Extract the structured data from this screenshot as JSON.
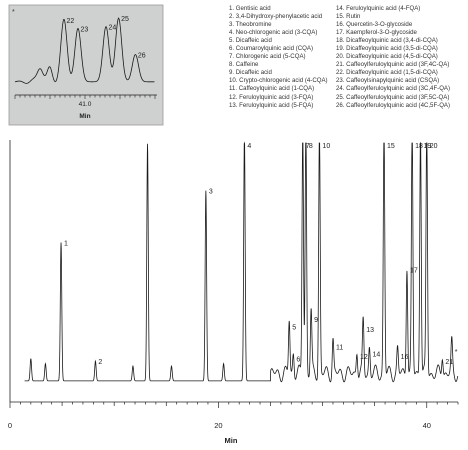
{
  "chart_data": [
    {
      "id": "main",
      "type": "line",
      "xlabel": "Min",
      "ylabel": "",
      "xlim": [
        0,
        43
      ],
      "xticks": [
        0,
        20,
        40
      ],
      "grid": false,
      "baseline": 0.045,
      "peaks": [
        {
          "label": "",
          "x": 2.0,
          "h": 0.09
        },
        {
          "label": "",
          "x": 3.4,
          "h": 0.07
        },
        {
          "label": "1",
          "x": 4.9,
          "h": 0.56
        },
        {
          "label": "2",
          "x": 8.2,
          "h": 0.08
        },
        {
          "label": "",
          "x": 11.8,
          "h": 0.06
        },
        {
          "label": "",
          "x": 13.2,
          "h": 0.96
        },
        {
          "label": "",
          "x": 15.5,
          "h": 0.06
        },
        {
          "label": "3",
          "x": 18.8,
          "h": 0.77
        },
        {
          "label": "",
          "x": 20.5,
          "h": 0.07
        },
        {
          "label": "4",
          "x": 22.5,
          "h": 1.0
        },
        {
          "label": "5",
          "x": 26.8,
          "h": 0.22
        },
        {
          "label": "6",
          "x": 27.2,
          "h": 0.09
        },
        {
          "label": "7",
          "x": 28.1,
          "h": 1.0
        },
        {
          "label": "8",
          "x": 28.4,
          "h": 1.0
        },
        {
          "label": "9",
          "x": 28.9,
          "h": 0.25
        },
        {
          "label": "10",
          "x": 29.7,
          "h": 1.0
        },
        {
          "label": "11",
          "x": 31.0,
          "h": 0.14
        },
        {
          "label": "12",
          "x": 33.3,
          "h": 0.1
        },
        {
          "label": "13",
          "x": 33.9,
          "h": 0.21
        },
        {
          "label": "14",
          "x": 34.5,
          "h": 0.11
        },
        {
          "label": "15",
          "x": 35.9,
          "h": 1.0
        },
        {
          "label": "16",
          "x": 37.2,
          "h": 0.1
        },
        {
          "label": "17",
          "x": 38.1,
          "h": 0.45
        },
        {
          "label": "18",
          "x": 38.6,
          "h": 1.0
        },
        {
          "label": "19",
          "x": 39.4,
          "h": 1.0
        },
        {
          "label": "20",
          "x": 40.0,
          "h": 1.0
        },
        {
          "label": "21",
          "x": 41.5,
          "h": 0.08
        },
        {
          "label": "*",
          "x": 42.4,
          "h": 0.12
        }
      ]
    },
    {
      "id": "inset",
      "type": "line",
      "xlabel": "Min",
      "ylabel": "",
      "grid": false,
      "xticks": [
        41.0
      ],
      "xtick_labels": [
        "41.0"
      ],
      "marker": "*",
      "baseline": 0.08,
      "peaks": [
        {
          "label": "22",
          "x": 0.35,
          "h": 0.95
        },
        {
          "label": "23",
          "x": 0.45,
          "h": 0.82
        },
        {
          "label": "24",
          "x": 0.65,
          "h": 0.85
        },
        {
          "label": "25",
          "x": 0.74,
          "h": 0.98
        },
        {
          "label": "26",
          "x": 0.86,
          "h": 0.42
        }
      ]
    }
  ],
  "legend": {
    "left": [
      "1. Gentisic acid",
      "2. 3,4-Dihydroxy-phenylacetic acid",
      "3. Theobromine",
      "4. Neo-chlorogenic acid (3-CQA)",
      "5. Dicaffeic acid",
      "6. Coumaroylquinic acid (CQA)",
      "7. Chlorogenic acid (5-CQA)",
      "8. Caffeine",
      "9. Dicaffeic acid",
      "10. Crypto-chlorogenic acid (4-CQA)",
      "11. Caffeoylquinic acid (1-CQA)",
      "12. Feruloylquinic acid (3-FQA)",
      "13. Feruloylquinic acid (5-FQA)"
    ],
    "right": [
      "14. Feruloylquinic acid (4-FQA)",
      "15. Rutin",
      "16. Quercetin-3-O-glycoside",
      "17. Kaempferol-3-O-glycoside",
      "18. Dicaffeoylquinic acid (3,4-di-CQA)",
      "19. Dicaffeoylquinic acid (3,5-di-CQA)",
      "20. Dicaffeoylquinic acid (4,5-di-CQA)",
      "21. Caffeoylferuloylquinic acid (3F,4C-QA)",
      "22. Dicaffeoylquinic acid (1,5-di-CQA)",
      "23. Caffeoylsinapylquinic acid (CSQA)",
      "24. Caffeoylferuloylquinic acid (3C,4F-QA)",
      "25. Caffeoylferuloylquinic acid (3F,5C-QA)",
      "26. Caffeoylferuloylquinic acid (4C,5F-QA)"
    ]
  },
  "colors": {
    "trace": "#1a1a1a",
    "axis": "#222222",
    "inset_background": "#cfd0d0",
    "inset_border": "#9a9a9a"
  }
}
